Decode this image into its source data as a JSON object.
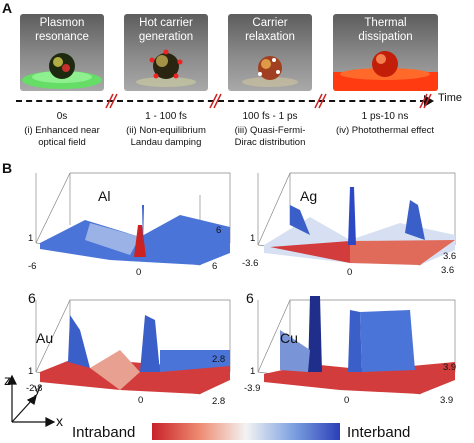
{
  "panel_a": {
    "letter": "A",
    "stages": [
      {
        "title_1": "Plasmon",
        "title_2": "resonance",
        "time": "0s",
        "caption_1": "(i) Enhanced near",
        "caption_2": "optical field"
      },
      {
        "title_1": "Hot carrier",
        "title_2": "generation",
        "time": "1 - 100 fs",
        "caption_1": "(ii) Non-equilibrium",
        "caption_2": "Landau damping"
      },
      {
        "title_1": "Carrier",
        "title_2": "relaxation",
        "time": "100 fs - 1 ps",
        "caption_1": "(iii) Quasi-Fermi-",
        "caption_2": "Dirac distribution"
      },
      {
        "title_1": "Thermal",
        "title_2": "dissipation",
        "time": "1 ps-10 ns",
        "caption_1": "(iv) Photothermal effect",
        "caption_2": ""
      }
    ],
    "time_axis_label": "Time"
  },
  "panel_b": {
    "letter": "B",
    "plots": [
      {
        "metal": "Al",
        "x_min": "-6",
        "x_mid": "0",
        "x_max": "6",
        "y_max": "6",
        "z_min": "1",
        "z_max": "",
        "color_hint": "#3a66d6"
      },
      {
        "metal": "Ag",
        "x_min": "-3.6",
        "x_mid": "0",
        "x_max": "3.6",
        "y_max": "3.6",
        "z_min": "1",
        "z_max": "",
        "color_hint": "#d24040"
      },
      {
        "metal": "Au",
        "x_min": "-2.8",
        "x_mid": "0",
        "x_max": "2.8",
        "y_max": "2.8",
        "z_min": "1",
        "z_max": "6",
        "color_hint": "#d24040"
      },
      {
        "metal": "Cu",
        "x_min": "-3.9",
        "x_mid": "0",
        "x_max": "3.9",
        "y_max": "3.9",
        "z_min": "1",
        "z_max": "6",
        "color_hint": "#d24040"
      }
    ],
    "axes_labels": {
      "x": "x",
      "y": "y",
      "z": "z"
    },
    "colorbar": {
      "left_label": "Intraband",
      "right_label": "Interband",
      "colors": [
        "#c8222a",
        "#f3f3f3",
        "#2b3fb8"
      ]
    }
  }
}
